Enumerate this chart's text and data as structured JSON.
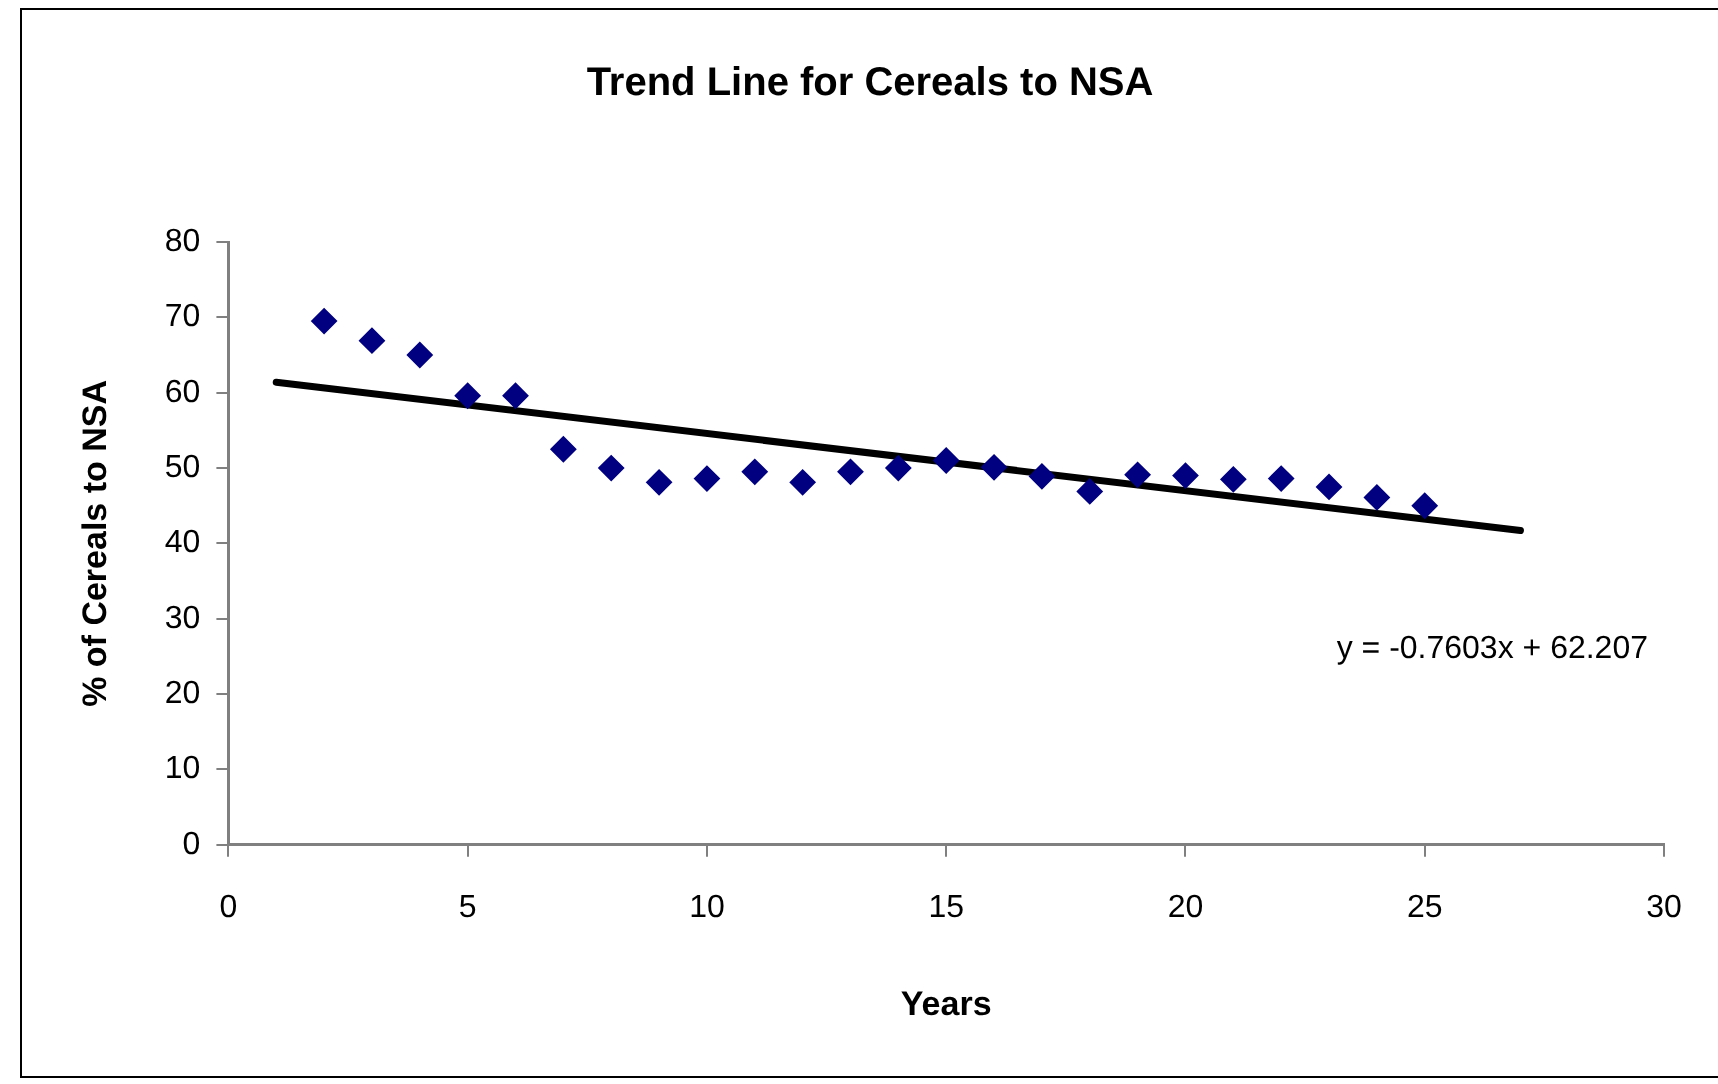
{
  "chart_data": {
    "type": "scatter",
    "title": "Trend Line for Cereals to NSA",
    "xlabel": "Years",
    "ylabel": "% of Cereals to NSA",
    "x": [
      2,
      3,
      4,
      5,
      6,
      7,
      8,
      9,
      10,
      11,
      12,
      13,
      14,
      15,
      16,
      17,
      18,
      19,
      20,
      21,
      22,
      23,
      24,
      25
    ],
    "series": [
      {
        "type": "scatter",
        "marker": "diamond",
        "color": "#000080",
        "values": [
          69.5,
          66.9,
          65.0,
          59.6,
          59.6,
          52.5,
          50.0,
          48.1,
          48.6,
          49.5,
          48.1,
          49.5,
          50.0,
          51.0,
          50.1,
          48.9,
          46.9,
          49.1,
          49.0,
          48.5,
          48.6,
          47.5,
          46.1,
          45.0
        ]
      },
      {
        "type": "line",
        "marker": "none",
        "color": "#000000",
        "x": [
          1,
          27
        ],
        "values": [
          61.4,
          41.7
        ]
      }
    ],
    "xlim": [
      0,
      30
    ],
    "xticks": [
      0,
      5,
      10,
      15,
      20,
      25,
      30
    ],
    "ylim": [
      0,
      80
    ],
    "yticks": [
      0,
      10,
      20,
      30,
      40,
      50,
      60,
      70,
      80
    ],
    "annotations": [
      "y = -0.7603x + 62.207"
    ]
  }
}
